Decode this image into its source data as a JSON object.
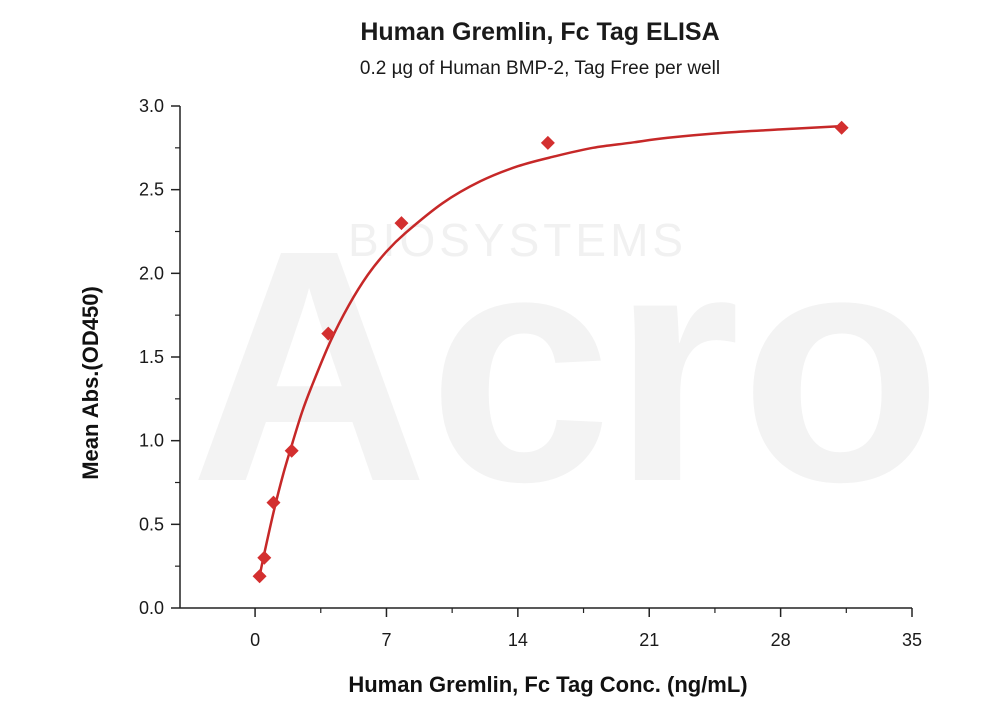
{
  "colors": {
    "series": "#c62828",
    "marker": "#d32f2f",
    "axis": "#222222",
    "watermark": "#f3f3f3"
  },
  "watermark": {
    "brand": "Acro",
    "sub": "BIOSYSTEMS"
  },
  "chart_data": {
    "type": "scatter",
    "title": "Human Gremlin, Fc Tag ELISA",
    "subtitle": "0.2 µg of Human BMP-2, Tag Free per well",
    "xlabel": "Human Gremlin, Fc Tag Conc. (ng/mL)",
    "ylabel": "Mean Abs.(OD450)",
    "xlim": [
      -4,
      35
    ],
    "ylim": [
      0,
      3.0
    ],
    "xticks": [
      0,
      7,
      14,
      21,
      28,
      35
    ],
    "yticks": [
      0.0,
      0.5,
      1.0,
      1.5,
      2.0,
      2.5,
      3.0
    ],
    "grid": false,
    "legend": "none",
    "series": [
      {
        "marker": "diamond",
        "x": [
          0.24,
          0.49,
          0.98,
          1.95,
          3.9,
          7.8,
          15.6,
          31.25
        ],
        "y": [
          0.19,
          0.3,
          0.63,
          0.94,
          1.64,
          2.3,
          2.78,
          2.87
        ]
      }
    ],
    "fit_curve": {
      "type": "sigmoidal",
      "x": [
        0.24,
        0.5,
        1.0,
        1.5,
        2.0,
        2.5,
        3.0,
        4.0,
        5.0,
        6.0,
        7.0,
        8.0,
        10.0,
        12.0,
        14.0,
        16.0,
        18.0,
        20.0,
        22.0,
        25.0,
        28.0,
        31.25
      ],
      "y": [
        0.19,
        0.33,
        0.58,
        0.8,
        0.99,
        1.17,
        1.32,
        1.59,
        1.81,
        1.99,
        2.13,
        2.24,
        2.42,
        2.55,
        2.64,
        2.7,
        2.75,
        2.78,
        2.81,
        2.84,
        2.86,
        2.88
      ]
    }
  }
}
